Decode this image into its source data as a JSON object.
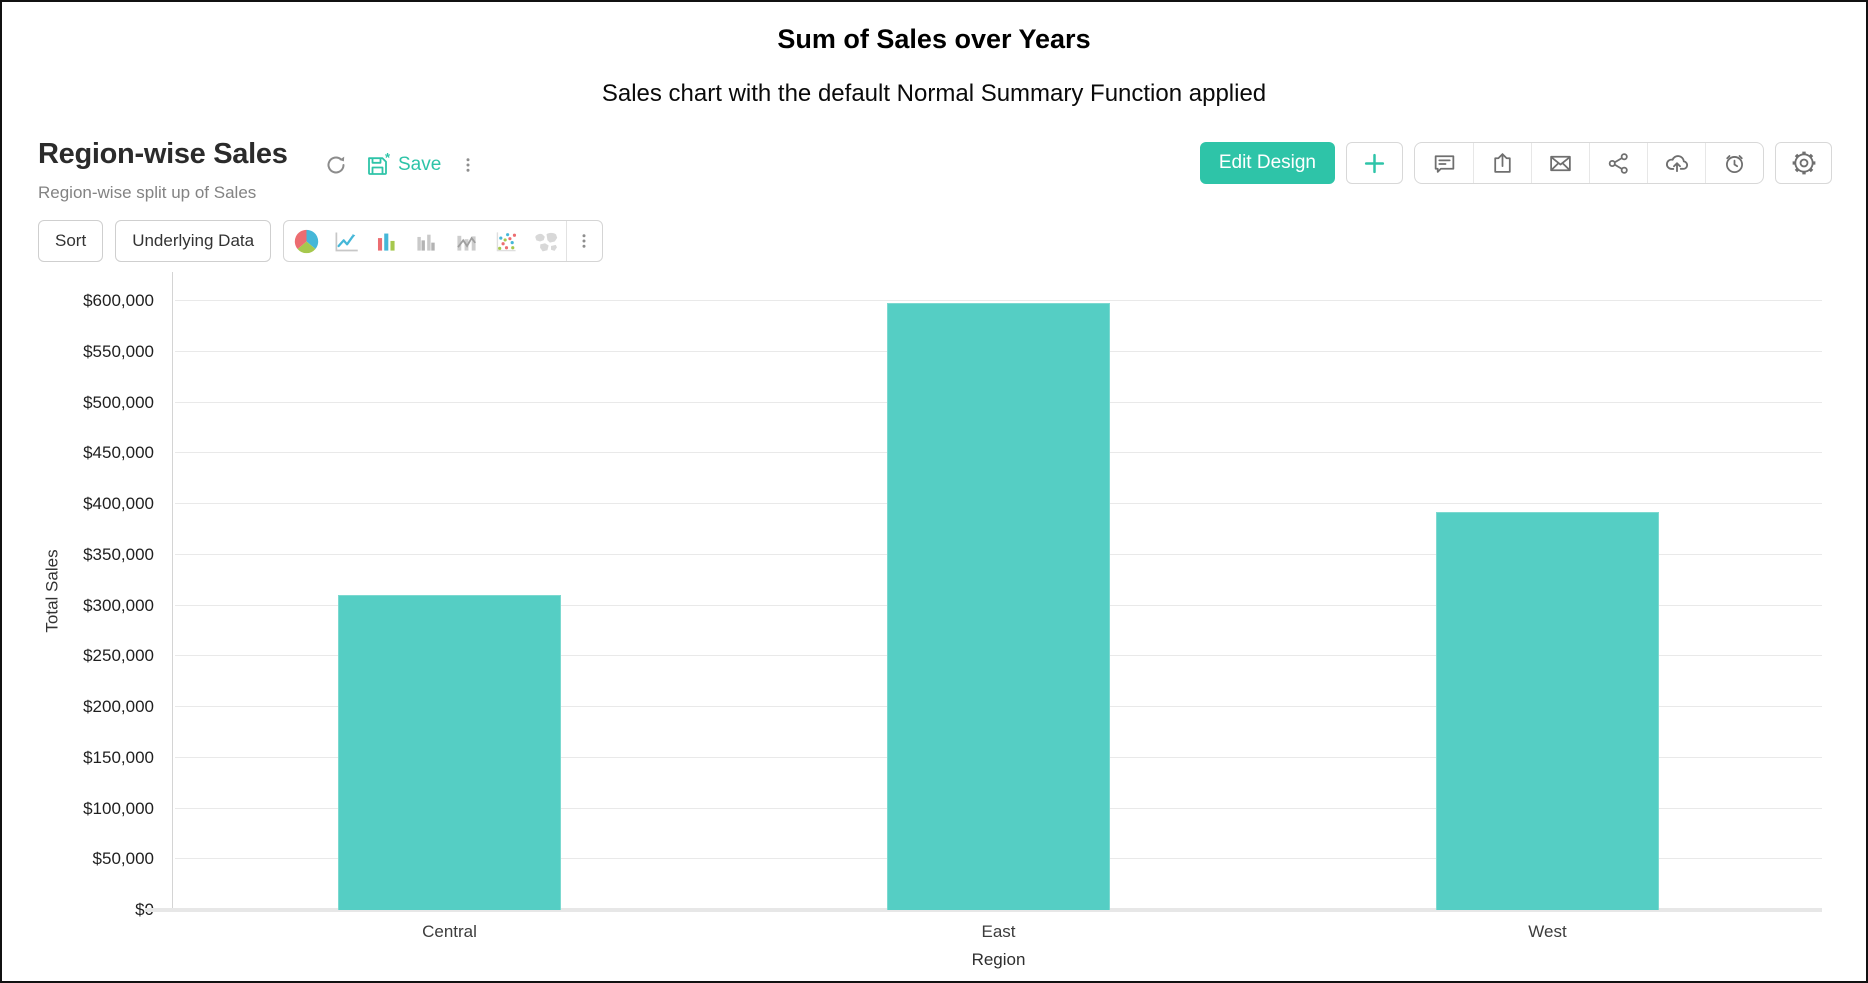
{
  "page": {
    "title": "Sum of Sales over Years",
    "subtitle": "Sales chart with the default Normal Summary Function applied"
  },
  "report": {
    "title": "Region-wise Sales",
    "subtitle": "Region-wise split up of Sales",
    "save_label": "Save",
    "inline_action_icons": [
      "refresh-icon",
      "save-icon",
      "more-options-icon"
    ],
    "edit_design_label": "Edit Design",
    "add_icon": "plus-icon",
    "action_icons": [
      "comment-icon",
      "export-icon",
      "email-icon",
      "share-icon",
      "publish-icon",
      "schedule-icon"
    ],
    "settings_icon": "settings-gear-icon"
  },
  "toolbar": {
    "sort_label": "Sort",
    "underlying_data_label": "Underlying Data",
    "chart_type_icons": [
      "pie-chart-icon",
      "line-chart-icon",
      "bar-chart-icon",
      "grouped-bar-chart-icon",
      "combo-chart-icon",
      "scatter-chart-icon",
      "map-chart-icon"
    ],
    "more_icon": "more-options-icon"
  },
  "chart_data": {
    "type": "bar",
    "categories": [
      "Central",
      "East",
      "West"
    ],
    "values": [
      310000,
      598000,
      392000
    ],
    "xlabel": "Region",
    "ylabel": "Total Sales",
    "ylim": [
      0,
      600000
    ],
    "ytick_step": 50000,
    "ytick_labels": [
      "$0",
      "$50,000",
      "$100,000",
      "$150,000",
      "$200,000",
      "$250,000",
      "$300,000",
      "$350,000",
      "$400,000",
      "$450,000",
      "$500,000",
      "$550,000",
      "$600,000"
    ],
    "grid": true,
    "legend": false,
    "bar_color": "#55cec4"
  },
  "colors": {
    "accent": "#2ec4a8",
    "bar_fill": "#55cec4",
    "bar_edge": "#7cd9d0",
    "icon_gray": "#6f6f6f",
    "pie_red": "#ec6d71",
    "pie_blue": "#45b7d8",
    "pie_green": "#a6c84d"
  }
}
